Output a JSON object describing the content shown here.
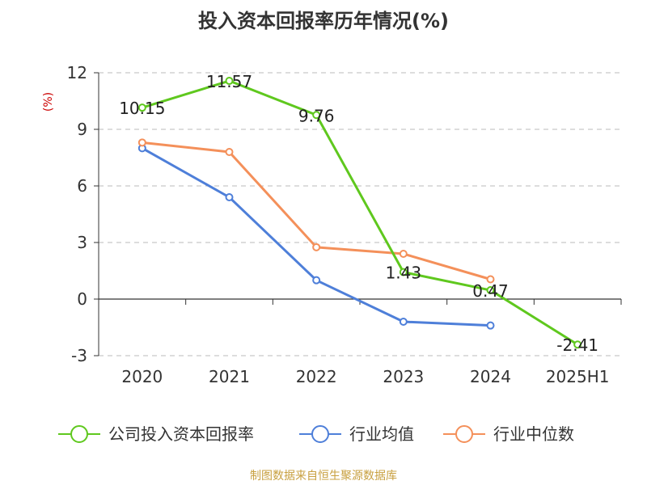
{
  "chart_data": {
    "type": "line",
    "title": "投入资本回报率历年情况(%)",
    "ylabel": "(%)",
    "categories": [
      "2020",
      "2021",
      "2022",
      "2023",
      "2024",
      "2025H1"
    ],
    "ylim": [
      -3,
      12
    ],
    "yticks": [
      "12",
      "9",
      "6",
      "3",
      "0",
      "-3"
    ],
    "grid": true,
    "legend_position": "bottom",
    "series": [
      {
        "name": "公司投入资本回报率",
        "color": "#5fc81e",
        "values": [
          10.15,
          11.57,
          9.76,
          1.43,
          0.47,
          -2.41
        ],
        "labels": [
          "10.15",
          "11.57",
          "9.76",
          "1.43",
          "0.47",
          "-2.41"
        ]
      },
      {
        "name": "行业均值",
        "color": "#4e7fd9",
        "values": [
          8.0,
          5.4,
          1.0,
          -1.2,
          -1.4,
          null
        ]
      },
      {
        "name": "行业中位数",
        "color": "#f4905a",
        "values": [
          8.3,
          7.8,
          2.75,
          2.4,
          1.05,
          null
        ]
      }
    ],
    "source": "制图数据来自恒生聚源数据库",
    "colors": {
      "ylabel": "#cc0000",
      "source": "#c8a040",
      "grid": "#bbbbbb",
      "axis": "#333333"
    }
  }
}
